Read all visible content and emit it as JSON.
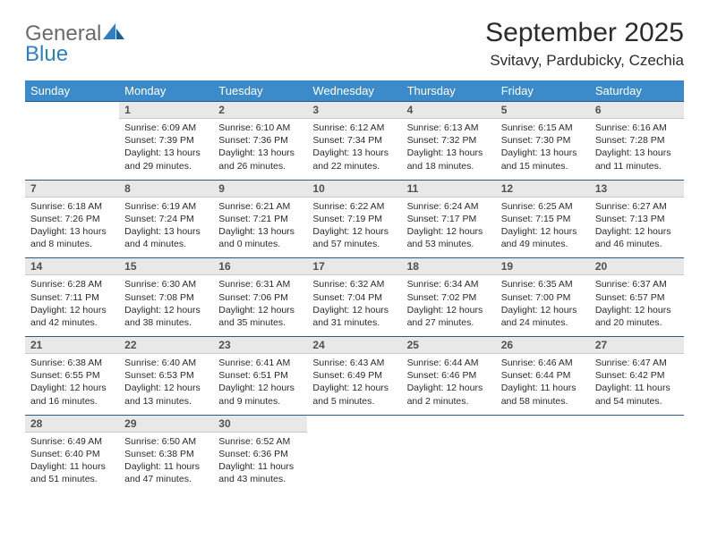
{
  "brand": {
    "word1": "General",
    "word2": "Blue"
  },
  "title": "September 2025",
  "location": "Svitavy, Pardubicky, Czechia",
  "colors": {
    "header_bg": "#3b8bca",
    "header_text": "#ffffff",
    "daynum_bg": "#e8e8e8",
    "daynum_border_top": "#2a5a8a",
    "logo_gray": "#6b6b6b",
    "logo_blue": "#2f7fc1",
    "body_text": "#2b2b2b",
    "page_bg": "#ffffff"
  },
  "weekdays": [
    "Sunday",
    "Monday",
    "Tuesday",
    "Wednesday",
    "Thursday",
    "Friday",
    "Saturday"
  ],
  "first_weekday_index": 1,
  "days": [
    {
      "n": 1,
      "sr": "6:09 AM",
      "ss": "7:39 PM",
      "dl": "13 hours and 29 minutes."
    },
    {
      "n": 2,
      "sr": "6:10 AM",
      "ss": "7:36 PM",
      "dl": "13 hours and 26 minutes."
    },
    {
      "n": 3,
      "sr": "6:12 AM",
      "ss": "7:34 PM",
      "dl": "13 hours and 22 minutes."
    },
    {
      "n": 4,
      "sr": "6:13 AM",
      "ss": "7:32 PM",
      "dl": "13 hours and 18 minutes."
    },
    {
      "n": 5,
      "sr": "6:15 AM",
      "ss": "7:30 PM",
      "dl": "13 hours and 15 minutes."
    },
    {
      "n": 6,
      "sr": "6:16 AM",
      "ss": "7:28 PM",
      "dl": "13 hours and 11 minutes."
    },
    {
      "n": 7,
      "sr": "6:18 AM",
      "ss": "7:26 PM",
      "dl": "13 hours and 8 minutes."
    },
    {
      "n": 8,
      "sr": "6:19 AM",
      "ss": "7:24 PM",
      "dl": "13 hours and 4 minutes."
    },
    {
      "n": 9,
      "sr": "6:21 AM",
      "ss": "7:21 PM",
      "dl": "13 hours and 0 minutes."
    },
    {
      "n": 10,
      "sr": "6:22 AM",
      "ss": "7:19 PM",
      "dl": "12 hours and 57 minutes."
    },
    {
      "n": 11,
      "sr": "6:24 AM",
      "ss": "7:17 PM",
      "dl": "12 hours and 53 minutes."
    },
    {
      "n": 12,
      "sr": "6:25 AM",
      "ss": "7:15 PM",
      "dl": "12 hours and 49 minutes."
    },
    {
      "n": 13,
      "sr": "6:27 AM",
      "ss": "7:13 PM",
      "dl": "12 hours and 46 minutes."
    },
    {
      "n": 14,
      "sr": "6:28 AM",
      "ss": "7:11 PM",
      "dl": "12 hours and 42 minutes."
    },
    {
      "n": 15,
      "sr": "6:30 AM",
      "ss": "7:08 PM",
      "dl": "12 hours and 38 minutes."
    },
    {
      "n": 16,
      "sr": "6:31 AM",
      "ss": "7:06 PM",
      "dl": "12 hours and 35 minutes."
    },
    {
      "n": 17,
      "sr": "6:32 AM",
      "ss": "7:04 PM",
      "dl": "12 hours and 31 minutes."
    },
    {
      "n": 18,
      "sr": "6:34 AM",
      "ss": "7:02 PM",
      "dl": "12 hours and 27 minutes."
    },
    {
      "n": 19,
      "sr": "6:35 AM",
      "ss": "7:00 PM",
      "dl": "12 hours and 24 minutes."
    },
    {
      "n": 20,
      "sr": "6:37 AM",
      "ss": "6:57 PM",
      "dl": "12 hours and 20 minutes."
    },
    {
      "n": 21,
      "sr": "6:38 AM",
      "ss": "6:55 PM",
      "dl": "12 hours and 16 minutes."
    },
    {
      "n": 22,
      "sr": "6:40 AM",
      "ss": "6:53 PM",
      "dl": "12 hours and 13 minutes."
    },
    {
      "n": 23,
      "sr": "6:41 AM",
      "ss": "6:51 PM",
      "dl": "12 hours and 9 minutes."
    },
    {
      "n": 24,
      "sr": "6:43 AM",
      "ss": "6:49 PM",
      "dl": "12 hours and 5 minutes."
    },
    {
      "n": 25,
      "sr": "6:44 AM",
      "ss": "6:46 PM",
      "dl": "12 hours and 2 minutes."
    },
    {
      "n": 26,
      "sr": "6:46 AM",
      "ss": "6:44 PM",
      "dl": "11 hours and 58 minutes."
    },
    {
      "n": 27,
      "sr": "6:47 AM",
      "ss": "6:42 PM",
      "dl": "11 hours and 54 minutes."
    },
    {
      "n": 28,
      "sr": "6:49 AM",
      "ss": "6:40 PM",
      "dl": "11 hours and 51 minutes."
    },
    {
      "n": 29,
      "sr": "6:50 AM",
      "ss": "6:38 PM",
      "dl": "11 hours and 47 minutes."
    },
    {
      "n": 30,
      "sr": "6:52 AM",
      "ss": "6:36 PM",
      "dl": "11 hours and 43 minutes."
    }
  ],
  "labels": {
    "sunrise": "Sunrise:",
    "sunset": "Sunset:",
    "daylight": "Daylight:"
  }
}
